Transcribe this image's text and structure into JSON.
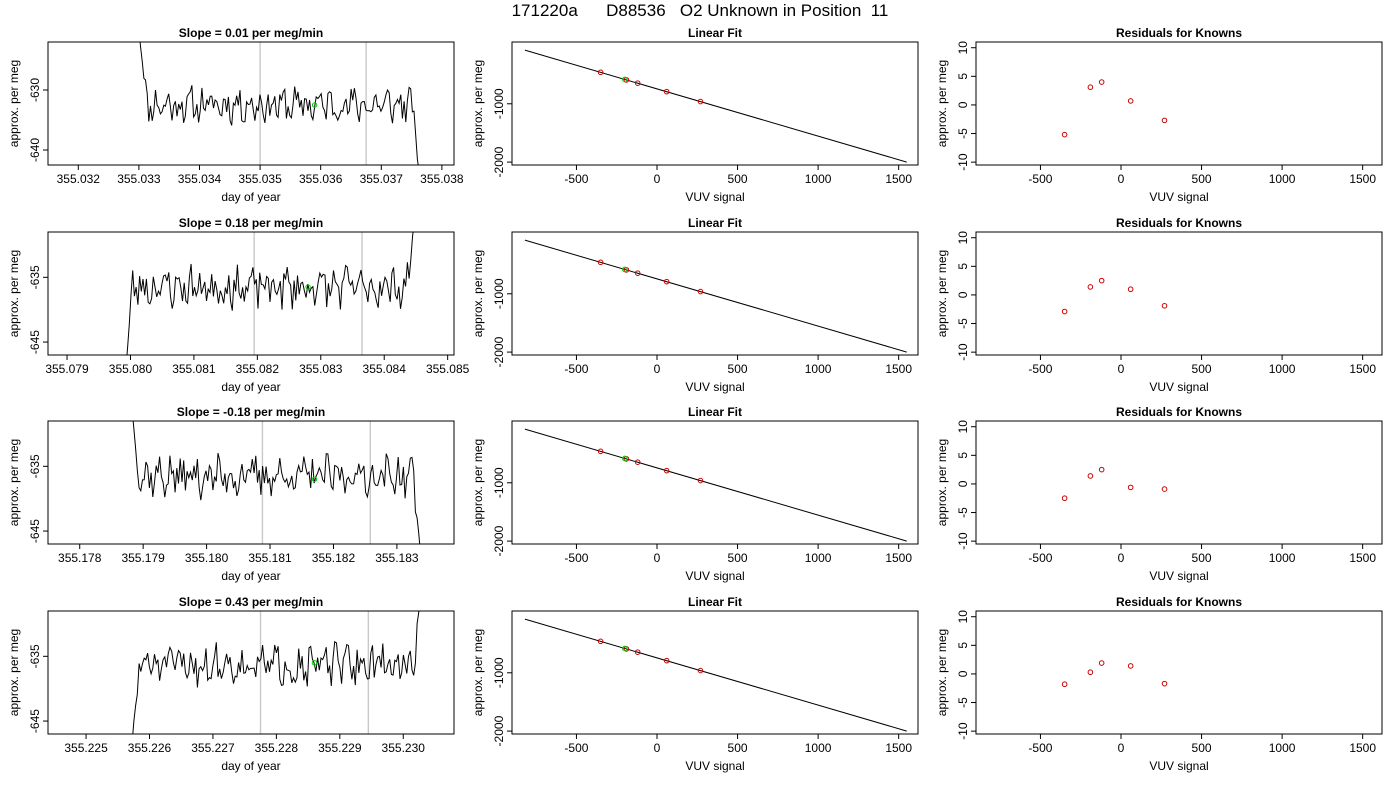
{
  "header": {
    "run": "171220a",
    "cylinder": "D88536",
    "species_text": "O2 Unknown in Position  11"
  },
  "colors": {
    "trace": "#000000",
    "cursor_lines": "#c8c8c8",
    "green_points": "#00cc00",
    "residual_points": "#cc0000"
  },
  "chart_data": [
    {
      "type": "line",
      "panel": "trace",
      "row": 1,
      "title": "Slope =  0.01  per meg/min",
      "xlabel": "day of year",
      "ylabel": "approx. per meg",
      "xlim": [
        355.0315,
        355.0382
      ],
      "ylim": [
        -642.5,
        -622
      ],
      "xticks": [
        355.032,
        355.033,
        355.034,
        355.035,
        355.036,
        355.037,
        355.038
      ],
      "xtick_labels": [
        "355.032",
        "355.033",
        "355.034",
        "355.035",
        "355.036",
        "355.037",
        "355.038"
      ],
      "yticks": [
        -630,
        -640
      ],
      "ytick_labels": [
        "-630",
        "-640"
      ],
      "vlines": [
        355.035,
        355.03675
      ],
      "trace_start": 355.033,
      "trace_end": 355.03765,
      "trace_base": -632.5,
      "trace_amp": 2.4,
      "trace_seed": 11,
      "start_value": -620,
      "end_value": -646,
      "marker": {
        "x": 355.0359,
        "y": -632.5
      }
    },
    {
      "type": "line",
      "panel": "trace",
      "row": 2,
      "title": "Slope =  0.18  per meg/min",
      "xlabel": "day of year",
      "ylabel": "approx. per meg",
      "xlim": [
        355.0787,
        355.0851
      ],
      "ylim": [
        -647,
        -628
      ],
      "xticks": [
        355.079,
        355.08,
        355.081,
        355.082,
        355.083,
        355.084,
        355.085
      ],
      "xtick_labels": [
        "355.079",
        "355.080",
        "355.081",
        "355.082",
        "355.083",
        "355.084",
        "355.085"
      ],
      "yticks": [
        -635,
        -645
      ],
      "ytick_labels": [
        "-635",
        "-645"
      ],
      "vlines": [
        355.08195,
        355.08365
      ],
      "trace_start": 355.0799,
      "trace_end": 355.0845,
      "trace_base": -636.5,
      "trace_amp": 2.6,
      "trace_seed": 23,
      "start_value": -652,
      "end_value": -624,
      "marker": {
        "x": 355.0828,
        "y": -636.5
      }
    },
    {
      "type": "line",
      "panel": "trace",
      "row": 3,
      "title": "Slope =  -0.18  per meg/min",
      "xlabel": "day of year",
      "ylabel": "approx. per meg",
      "xlim": [
        355.1775,
        355.1839
      ],
      "ylim": [
        -647,
        -628
      ],
      "xticks": [
        355.178,
        355.179,
        355.18,
        355.181,
        355.182,
        355.183
      ],
      "xtick_labels": [
        "355.178",
        "355.179",
        "355.180",
        "355.181",
        "355.182",
        "355.183"
      ],
      "yticks": [
        -635,
        -645
      ],
      "ytick_labels": [
        "-635",
        "-645"
      ],
      "vlines": [
        355.18088,
        355.18258
      ],
      "trace_start": 355.1788,
      "trace_end": 355.1834,
      "trace_base": -636.5,
      "trace_amp": 2.5,
      "trace_seed": 37,
      "start_value": -624,
      "end_value": -652,
      "marker": {
        "x": 355.1817,
        "y": -637
      }
    },
    {
      "type": "line",
      "panel": "trace",
      "row": 4,
      "title": "Slope =  0.43  per meg/min",
      "xlabel": "day of year",
      "ylabel": "approx. per meg",
      "xlim": [
        355.2244,
        355.2308
      ],
      "ylim": [
        -647,
        -628
      ],
      "xticks": [
        355.225,
        355.226,
        355.227,
        355.228,
        355.229,
        355.23
      ],
      "xtick_labels": [
        "355.225",
        "355.226",
        "355.227",
        "355.228",
        "355.229",
        "355.230"
      ],
      "yticks": [
        -635,
        -645
      ],
      "ytick_labels": [
        "-635",
        "-645"
      ],
      "vlines": [
        355.22775,
        355.22945
      ],
      "trace_start": 355.2257,
      "trace_end": 355.2303,
      "trace_base": -636.3,
      "trace_amp": 2.5,
      "trace_seed": 51,
      "start_value": -652,
      "end_value": -624,
      "marker": {
        "x": 355.2286,
        "y": -636
      }
    },
    {
      "type": "scatter",
      "panel": "fit",
      "row": 1,
      "title": "Linear Fit",
      "xlabel": "VUV signal",
      "ylabel": "approx. per meg",
      "xlim": [
        -900,
        1620
      ],
      "ylim": [
        -2050,
        60
      ],
      "xticks": [
        -500,
        0,
        500,
        1000,
        1500
      ],
      "xtick_labels": [
        "-500",
        "0",
        "500",
        "1000",
        "1500"
      ],
      "yticks": [
        -1000,
        -2000
      ],
      "ytick_labels": [
        "-1000",
        "-2000"
      ],
      "fit_line": [
        [
          -820,
          -80
        ],
        [
          1550,
          -2000
        ]
      ],
      "points": [
        {
          "x": -350,
          "y": -460
        },
        {
          "x": -190,
          "y": -590
        },
        {
          "x": -120,
          "y": -646
        },
        {
          "x": 60,
          "y": -792
        },
        {
          "x": 270,
          "y": -962
        }
      ],
      "green_point": {
        "x": -200,
        "y": -582
      }
    },
    {
      "type": "scatter",
      "panel": "fit",
      "row": 2,
      "title": "Linear Fit",
      "xlabel": "VUV signal",
      "ylabel": "approx. per meg",
      "xlim": [
        -900,
        1620
      ],
      "ylim": [
        -2050,
        60
      ],
      "xticks": [
        -500,
        0,
        500,
        1000,
        1500
      ],
      "xtick_labels": [
        "-500",
        "0",
        "500",
        "1000",
        "1500"
      ],
      "yticks": [
        -1000,
        -2000
      ],
      "ytick_labels": [
        "-1000",
        "-2000"
      ],
      "fit_line": [
        [
          -820,
          -80
        ],
        [
          1550,
          -2000
        ]
      ],
      "points": [
        {
          "x": -350,
          "y": -460
        },
        {
          "x": -190,
          "y": -590
        },
        {
          "x": -120,
          "y": -646
        },
        {
          "x": 60,
          "y": -792
        },
        {
          "x": 270,
          "y": -962
        }
      ],
      "green_point": {
        "x": -200,
        "y": -582
      }
    },
    {
      "type": "scatter",
      "panel": "fit",
      "row": 3,
      "title": "Linear Fit",
      "xlabel": "VUV signal",
      "ylabel": "approx. per meg",
      "xlim": [
        -900,
        1620
      ],
      "ylim": [
        -2050,
        60
      ],
      "xticks": [
        -500,
        0,
        500,
        1000,
        1500
      ],
      "xtick_labels": [
        "-500",
        "0",
        "500",
        "1000",
        "1500"
      ],
      "yticks": [
        -1000,
        -2000
      ],
      "ytick_labels": [
        "-1000",
        "-2000"
      ],
      "fit_line": [
        [
          -820,
          -80
        ],
        [
          1550,
          -2000
        ]
      ],
      "points": [
        {
          "x": -350,
          "y": -460
        },
        {
          "x": -190,
          "y": -590
        },
        {
          "x": -120,
          "y": -646
        },
        {
          "x": 60,
          "y": -792
        },
        {
          "x": 270,
          "y": -962
        }
      ],
      "green_point": {
        "x": -200,
        "y": -582
      }
    },
    {
      "type": "scatter",
      "panel": "fit",
      "row": 4,
      "title": "Linear Fit",
      "xlabel": "VUV signal",
      "ylabel": "approx. per meg",
      "xlim": [
        -900,
        1620
      ],
      "ylim": [
        -2050,
        60
      ],
      "xticks": [
        -500,
        0,
        500,
        1000,
        1500
      ],
      "xtick_labels": [
        "-500",
        "0",
        "500",
        "1000",
        "1500"
      ],
      "yticks": [
        -1000,
        -2000
      ],
      "ytick_labels": [
        "-1000",
        "-2000"
      ],
      "fit_line": [
        [
          -820,
          -80
        ],
        [
          1550,
          -2000
        ]
      ],
      "points": [
        {
          "x": -350,
          "y": -460
        },
        {
          "x": -190,
          "y": -590
        },
        {
          "x": -120,
          "y": -646
        },
        {
          "x": 60,
          "y": -792
        },
        {
          "x": 270,
          "y": -962
        }
      ],
      "green_point": {
        "x": -200,
        "y": -582
      }
    },
    {
      "type": "scatter",
      "panel": "residuals",
      "row": 1,
      "title": "Residuals for Knowns",
      "xlabel": "VUV signal",
      "ylabel": "approx. per meg",
      "xlim": [
        -900,
        1620
      ],
      "ylim": [
        -10.5,
        11
      ],
      "xticks": [
        -500,
        0,
        500,
        1000,
        1500
      ],
      "xtick_labels": [
        "-500",
        "0",
        "500",
        "1000",
        "1500"
      ],
      "yticks": [
        10,
        5,
        0,
        -5,
        -10
      ],
      "ytick_labels": [
        "10",
        "5",
        "0",
        "-5",
        "-10"
      ],
      "points": [
        {
          "x": -350,
          "y": -5.2
        },
        {
          "x": -190,
          "y": 3.1
        },
        {
          "x": -120,
          "y": 4.0
        },
        {
          "x": 60,
          "y": 0.7
        },
        {
          "x": 270,
          "y": -2.7
        }
      ]
    },
    {
      "type": "scatter",
      "panel": "residuals",
      "row": 2,
      "title": "Residuals for Knowns",
      "xlabel": "VUV signal",
      "ylabel": "approx. per meg",
      "xlim": [
        -900,
        1620
      ],
      "ylim": [
        -10.5,
        11
      ],
      "xticks": [
        -500,
        0,
        500,
        1000,
        1500
      ],
      "xtick_labels": [
        "-500",
        "0",
        "500",
        "1000",
        "1500"
      ],
      "yticks": [
        10,
        5,
        0,
        -5,
        -10
      ],
      "ytick_labels": [
        "10",
        "5",
        "0",
        "-5",
        "-10"
      ],
      "points": [
        {
          "x": -350,
          "y": -2.9
        },
        {
          "x": -190,
          "y": 1.4
        },
        {
          "x": -120,
          "y": 2.5
        },
        {
          "x": 60,
          "y": 1.0
        },
        {
          "x": 270,
          "y": -1.9
        }
      ]
    },
    {
      "type": "scatter",
      "panel": "residuals",
      "row": 3,
      "title": "Residuals for Knowns",
      "xlabel": "VUV signal",
      "ylabel": "approx. per meg",
      "xlim": [
        -900,
        1620
      ],
      "ylim": [
        -10.5,
        11
      ],
      "xticks": [
        -500,
        0,
        500,
        1000,
        1500
      ],
      "xtick_labels": [
        "-500",
        "0",
        "500",
        "1000",
        "1500"
      ],
      "yticks": [
        10,
        5,
        0,
        -5,
        -10
      ],
      "ytick_labels": [
        "10",
        "5",
        "0",
        "-5",
        "-10"
      ],
      "points": [
        {
          "x": -350,
          "y": -2.5
        },
        {
          "x": -190,
          "y": 1.4
        },
        {
          "x": -120,
          "y": 2.5
        },
        {
          "x": 60,
          "y": -0.6
        },
        {
          "x": 270,
          "y": -0.9
        }
      ]
    },
    {
      "type": "scatter",
      "panel": "residuals",
      "row": 4,
      "title": "Residuals for Knowns",
      "xlabel": "VUV signal",
      "ylabel": "approx. per meg",
      "xlim": [
        -900,
        1620
      ],
      "ylim": [
        -10.5,
        11
      ],
      "xticks": [
        -500,
        0,
        500,
        1000,
        1500
      ],
      "xtick_labels": [
        "-500",
        "0",
        "500",
        "1000",
        "1500"
      ],
      "yticks": [
        10,
        5,
        0,
        -5,
        -10
      ],
      "ytick_labels": [
        "10",
        "5",
        "0",
        "-5",
        "-10"
      ],
      "points": [
        {
          "x": -350,
          "y": -1.8
        },
        {
          "x": -190,
          "y": 0.3
        },
        {
          "x": -120,
          "y": 1.9
        },
        {
          "x": 60,
          "y": 1.4
        },
        {
          "x": 270,
          "y": -1.7
        }
      ]
    }
  ]
}
